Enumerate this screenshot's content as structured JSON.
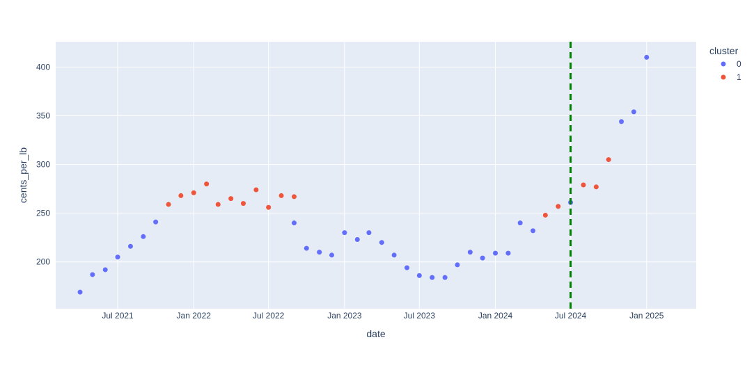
{
  "chart_data": {
    "type": "scatter",
    "title": "",
    "xlabel": "date",
    "ylabel": "cents_per_lb",
    "x_range": [
      "2021-02-01",
      "2025-05-01"
    ],
    "ylim": [
      152,
      426
    ],
    "x_ticks": [
      {
        "date": "2021-07-01",
        "label": "Jul 2021"
      },
      {
        "date": "2022-01-01",
        "label": "Jan 2022"
      },
      {
        "date": "2022-07-01",
        "label": "Jul 2022"
      },
      {
        "date": "2023-01-01",
        "label": "Jan 2023"
      },
      {
        "date": "2023-07-01",
        "label": "Jul 2023"
      },
      {
        "date": "2024-01-01",
        "label": "Jan 2024"
      },
      {
        "date": "2024-07-01",
        "label": "Jul 2024"
      },
      {
        "date": "2025-01-01",
        "label": "Jan 2025"
      }
    ],
    "y_ticks": [
      200,
      250,
      300,
      350,
      400
    ],
    "grid": true,
    "legend": {
      "title": "cluster",
      "placement": "top-right"
    },
    "series": [
      {
        "name": "0",
        "color": "#636efa",
        "points": [
          {
            "x": "2021-04-01",
            "y": 169
          },
          {
            "x": "2021-05-01",
            "y": 187
          },
          {
            "x": "2021-06-01",
            "y": 192
          },
          {
            "x": "2021-07-01",
            "y": 205
          },
          {
            "x": "2021-08-01",
            "y": 216
          },
          {
            "x": "2021-09-01",
            "y": 226
          },
          {
            "x": "2021-10-01",
            "y": 241
          },
          {
            "x": "2022-09-01",
            "y": 240
          },
          {
            "x": "2022-10-01",
            "y": 214
          },
          {
            "x": "2022-11-01",
            "y": 210
          },
          {
            "x": "2022-12-01",
            "y": 207
          },
          {
            "x": "2023-01-01",
            "y": 230
          },
          {
            "x": "2023-02-01",
            "y": 223
          },
          {
            "x": "2023-03-01",
            "y": 230
          },
          {
            "x": "2023-04-01",
            "y": 220
          },
          {
            "x": "2023-05-01",
            "y": 207
          },
          {
            "x": "2023-06-01",
            "y": 194
          },
          {
            "x": "2023-07-01",
            "y": 186
          },
          {
            "x": "2023-08-01",
            "y": 184
          },
          {
            "x": "2023-09-01",
            "y": 184
          },
          {
            "x": "2023-10-01",
            "y": 197
          },
          {
            "x": "2023-11-01",
            "y": 210
          },
          {
            "x": "2023-12-01",
            "y": 204
          },
          {
            "x": "2024-01-01",
            "y": 209
          },
          {
            "x": "2024-02-01",
            "y": 209
          },
          {
            "x": "2024-03-01",
            "y": 240
          },
          {
            "x": "2024-04-01",
            "y": 232
          },
          {
            "x": "2024-07-01",
            "y": 261
          },
          {
            "x": "2024-11-01",
            "y": 344
          },
          {
            "x": "2024-12-01",
            "y": 354
          },
          {
            "x": "2025-01-01",
            "y": 410
          }
        ]
      },
      {
        "name": "1",
        "color": "#ef553b",
        "points": [
          {
            "x": "2021-11-01",
            "y": 259
          },
          {
            "x": "2021-12-01",
            "y": 268
          },
          {
            "x": "2022-01-01",
            "y": 271
          },
          {
            "x": "2022-02-01",
            "y": 280
          },
          {
            "x": "2022-03-01",
            "y": 259
          },
          {
            "x": "2022-04-01",
            "y": 265
          },
          {
            "x": "2022-05-01",
            "y": 260
          },
          {
            "x": "2022-06-01",
            "y": 274
          },
          {
            "x": "2022-07-01",
            "y": 256
          },
          {
            "x": "2022-08-01",
            "y": 268
          },
          {
            "x": "2022-09-01",
            "y": 267
          },
          {
            "x": "2024-05-01",
            "y": 248
          },
          {
            "x": "2024-06-01",
            "y": 257
          },
          {
            "x": "2024-08-01",
            "y": 279
          },
          {
            "x": "2024-09-01",
            "y": 277
          },
          {
            "x": "2024-10-01",
            "y": 305
          }
        ]
      }
    ],
    "vertical_lines": [
      {
        "x": "2024-07-01",
        "color": "#008000",
        "dash": "dash"
      }
    ]
  }
}
